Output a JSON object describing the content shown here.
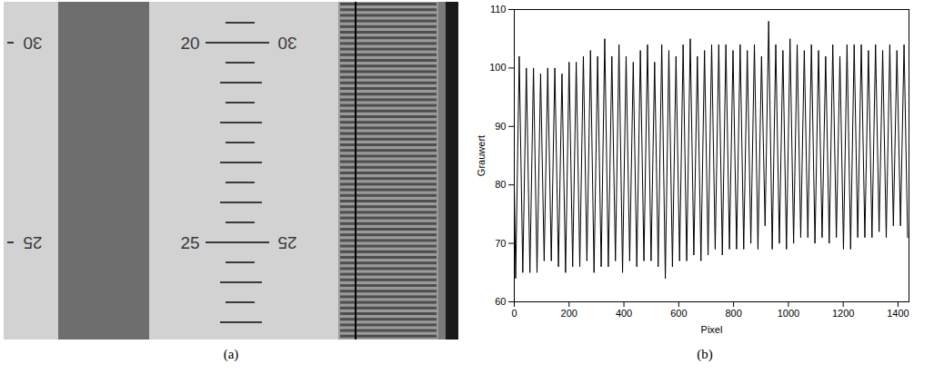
{
  "captions": {
    "a": "(a)",
    "b": "(b)"
  },
  "photo": {
    "left_scale_labels": [
      "30",
      "25"
    ],
    "center_scale_labels": [
      "20",
      "25"
    ],
    "right_scale_labels": [
      "30",
      "25"
    ]
  },
  "chart_data": {
    "type": "line",
    "xlabel": "Pixel",
    "ylabel": "Grauwert",
    "color": "#000000",
    "grid": false,
    "xlim": [
      0,
      1440
    ],
    "xticks": [
      0,
      200,
      400,
      600,
      800,
      1000,
      1200,
      1400
    ],
    "ylim": [
      60,
      110
    ],
    "yticks": [
      60,
      70,
      80,
      90,
      100,
      110
    ],
    "x": [
      0,
      5,
      18,
      31,
      44,
      57,
      70,
      83,
      96,
      109,
      122,
      135,
      148,
      161,
      174,
      187,
      200,
      213,
      226,
      239,
      252,
      265,
      278,
      291,
      304,
      317,
      330,
      343,
      356,
      369,
      382,
      395,
      408,
      421,
      434,
      447,
      460,
      473,
      486,
      499,
      512,
      525,
      538,
      551,
      564,
      577,
      590,
      603,
      616,
      629,
      642,
      655,
      668,
      681,
      694,
      707,
      720,
      733,
      746,
      759,
      772,
      785,
      798,
      811,
      824,
      837,
      850,
      863,
      876,
      889,
      902,
      915,
      928,
      941,
      954,
      967,
      980,
      993,
      1006,
      1019,
      1032,
      1045,
      1058,
      1071,
      1084,
      1097,
      1110,
      1123,
      1136,
      1149,
      1162,
      1175,
      1188,
      1201,
      1214,
      1227,
      1240,
      1253,
      1266,
      1279,
      1292,
      1305,
      1318,
      1331,
      1344,
      1357,
      1370,
      1383,
      1396,
      1409,
      1422,
      1435
    ],
    "values": [
      80,
      64,
      102,
      65,
      100,
      65,
      100,
      65,
      99,
      67,
      100,
      67,
      100,
      66,
      99,
      65,
      101,
      66,
      101,
      66,
      102,
      67,
      103,
      65,
      102,
      66,
      105,
      66,
      102,
      67,
      104,
      65,
      102,
      67,
      101,
      66,
      103,
      67,
      104,
      67,
      101,
      66,
      104,
      64,
      103,
      66,
      102,
      67,
      104,
      67,
      105,
      68,
      102,
      67,
      103,
      68,
      104,
      69,
      104,
      68,
      104,
      69,
      103,
      69,
      104,
      69,
      103,
      70,
      104,
      69,
      102,
      73,
      108,
      69,
      104,
      70,
      103,
      69,
      105,
      70,
      104,
      71,
      103,
      71,
      104,
      70,
      103,
      71,
      102,
      70,
      104,
      71,
      102,
      69,
      104,
      69,
      104,
      71,
      104,
      71,
      103,
      71,
      104,
      72,
      103,
      71,
      104,
      73,
      103,
      73,
      104,
      71
    ]
  }
}
